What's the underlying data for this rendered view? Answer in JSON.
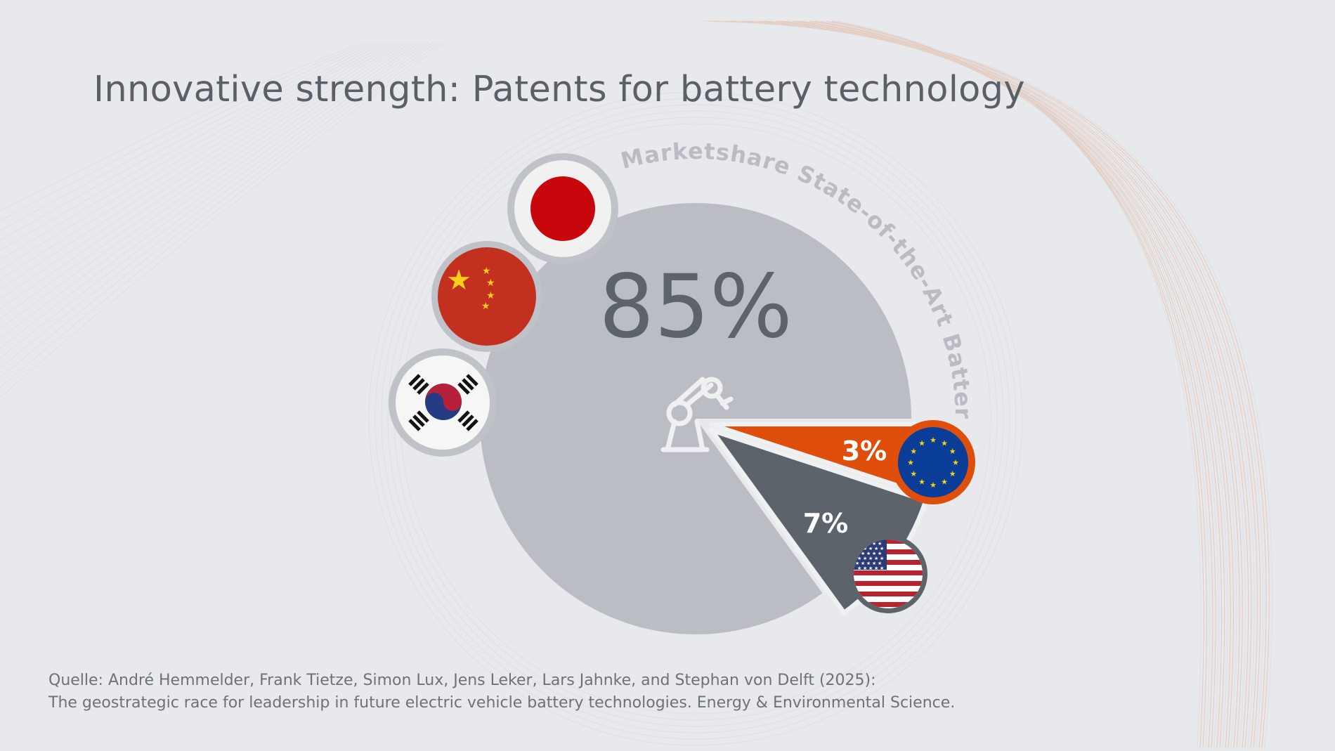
{
  "title": "Innovative strength: Patents for battery technology",
  "source": {
    "line1": "Quelle: André Hemmelder, Frank Tietze, Simon Lux, Jens Leker, Lars Jahnke, and Stephan von Delft (2025):",
    "line2": "The geostrategic race for leadership in future electric vehicle battery technologies. Energy & Environmental Science."
  },
  "chart_data": {
    "type": "pie",
    "title": "Innovative strength: Patents for battery technology",
    "arc_label": "Marketshare State-of-the-Art Batteries",
    "center_icon": "robot-arm-icon",
    "slices": [
      {
        "group": "Japan, China, South Korea",
        "flags": [
          "japan-flag-icon",
          "china-flag-icon",
          "south-korea-flag-icon"
        ],
        "value": 85,
        "label": "85%",
        "color": "#babdc4"
      },
      {
        "group": "European Union",
        "flags": [
          "eu-flag-icon"
        ],
        "value": 3,
        "label": "3%",
        "color": "#e04e0b"
      },
      {
        "group": "United States",
        "flags": [
          "usa-flag-icon"
        ],
        "value": 7,
        "label": "7%",
        "color": "#5c636b"
      }
    ]
  },
  "colors": {
    "background": "#e7e9ed",
    "title": "#5b6068",
    "accent": "#e04e0b"
  }
}
